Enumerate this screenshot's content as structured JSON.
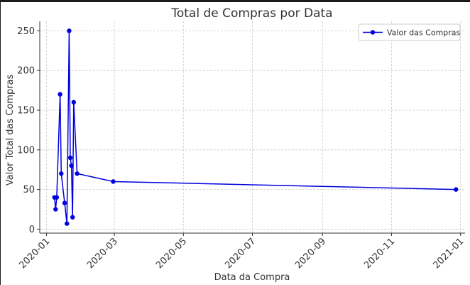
{
  "chart_data": {
    "type": "line",
    "title": "Total de Compras por Data",
    "xlabel": "Data da Compra",
    "ylabel": "Valor Total das Compras",
    "x_ticks": [
      "2020-01",
      "2020-03",
      "2020-05",
      "2020-07",
      "2020-09",
      "2020-11",
      "2021-01"
    ],
    "y_ticks": [
      0,
      50,
      100,
      150,
      200,
      250
    ],
    "ylim": [
      -5,
      262
    ],
    "xlim": [
      "2019-12-26",
      "2021-01-05"
    ],
    "grid": true,
    "legend_position": "top-right",
    "series": [
      {
        "name": "Valor das Compras",
        "color": "#0000dd",
        "points": [
          {
            "x": "2020-01-08",
            "y": 40
          },
          {
            "x": "2020-01-09",
            "y": 25
          },
          {
            "x": "2020-01-10",
            "y": 40
          },
          {
            "x": "2020-01-13",
            "y": 170
          },
          {
            "x": "2020-01-14",
            "y": 70
          },
          {
            "x": "2020-01-17",
            "y": 33
          },
          {
            "x": "2020-01-19",
            "y": 7
          },
          {
            "x": "2020-01-21",
            "y": 250
          },
          {
            "x": "2020-01-22",
            "y": 90
          },
          {
            "x": "2020-01-23",
            "y": 80
          },
          {
            "x": "2020-01-24",
            "y": 15
          },
          {
            "x": "2020-01-25",
            "y": 160
          },
          {
            "x": "2020-01-28",
            "y": 70
          },
          {
            "x": "2020-02-29",
            "y": 60
          },
          {
            "x": "2020-12-28",
            "y": 50
          }
        ]
      }
    ]
  }
}
